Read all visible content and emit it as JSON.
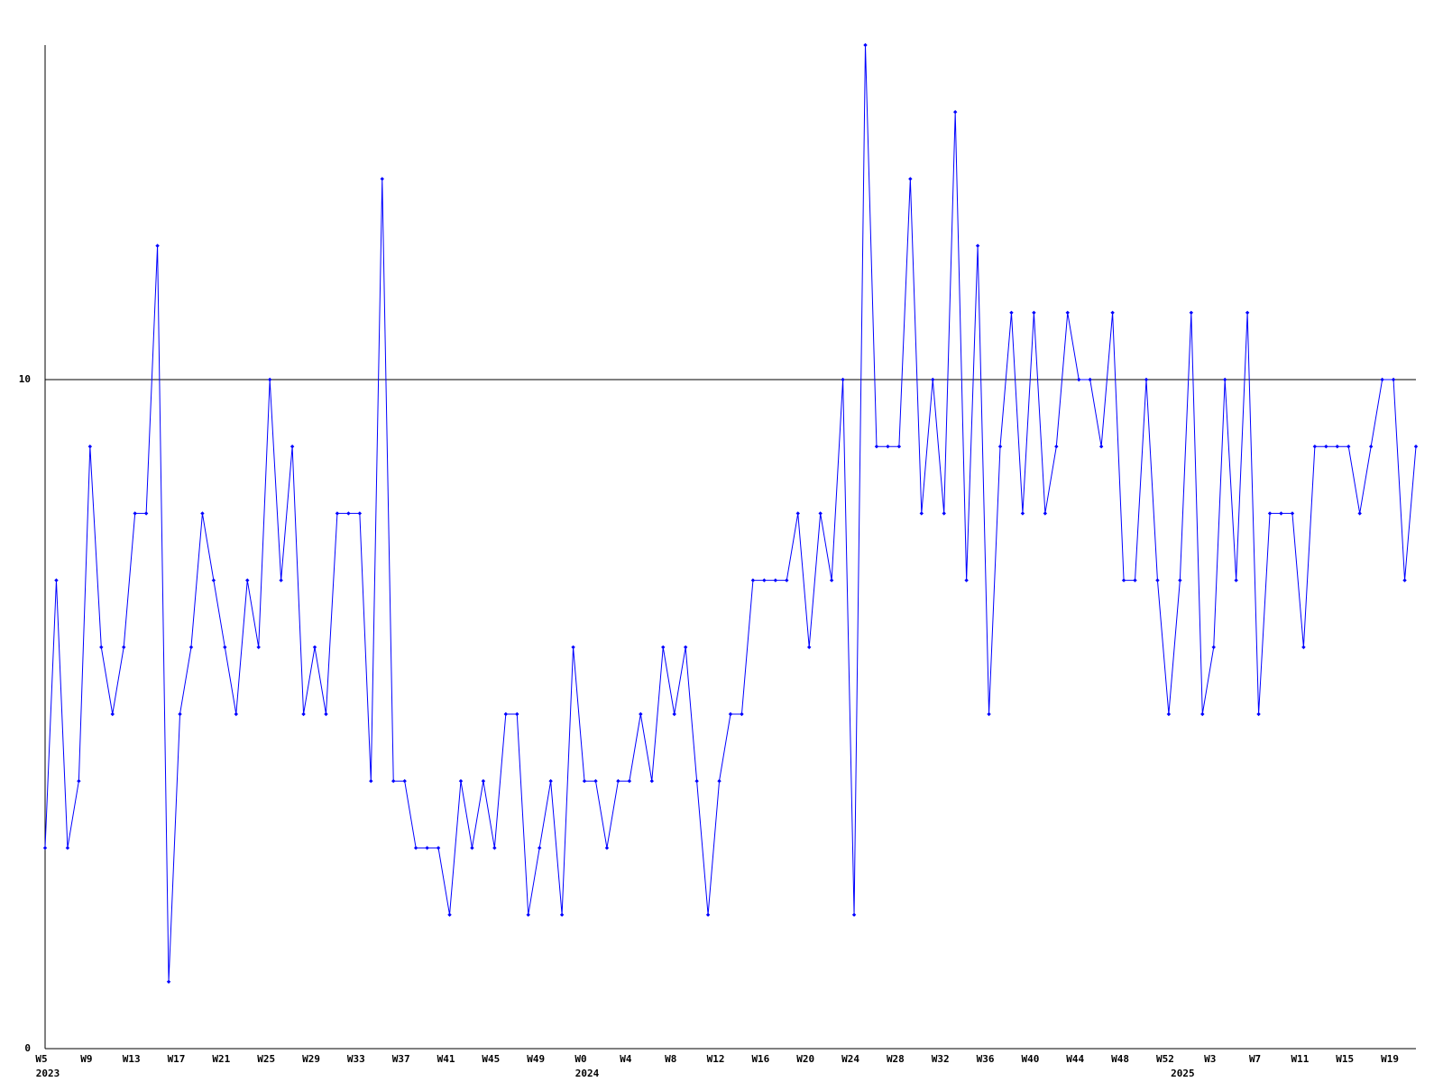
{
  "chart_data": {
    "type": "line",
    "color": "#0000ff",
    "grid": true,
    "ylim": [
      0,
      15
    ],
    "yticks": [
      0,
      10
    ],
    "categories": [
      "W5",
      null,
      null,
      null,
      "W9",
      null,
      null,
      null,
      "W13",
      null,
      null,
      null,
      "W17",
      null,
      null,
      null,
      "W21",
      null,
      null,
      null,
      "W25",
      null,
      null,
      null,
      "W29",
      null,
      null,
      null,
      "W33",
      null,
      null,
      null,
      "W37",
      null,
      null,
      null,
      "W41",
      null,
      null,
      null,
      "W45",
      null,
      null,
      null,
      "W49",
      null,
      null,
      null,
      "W0",
      null,
      null,
      null,
      "W4",
      null,
      null,
      null,
      "W8",
      null,
      null,
      null,
      "W12",
      null,
      null,
      null,
      "W16",
      null,
      null,
      null,
      "W20",
      null,
      null,
      null,
      "W24",
      null,
      null,
      null,
      "W28",
      null,
      null,
      null,
      "W32",
      null,
      null,
      null,
      "W36",
      null,
      null,
      null,
      "W40",
      null,
      null,
      null,
      "W44",
      null,
      null,
      null,
      "W48",
      null,
      null,
      null,
      "W52",
      null,
      null,
      null,
      "W3",
      null,
      null,
      null,
      "W7",
      null,
      null,
      null,
      "W11",
      null,
      null,
      null,
      "W15",
      null,
      null,
      null,
      "W19",
      null,
      null
    ],
    "year_labels": [
      {
        "value": 0,
        "label": "2023"
      },
      {
        "value": 48,
        "label": "2024"
      },
      {
        "value": 101,
        "label": "2025"
      }
    ],
    "values": [
      3,
      7,
      3,
      4,
      9,
      6,
      5,
      6,
      8,
      8,
      12,
      1,
      5,
      6,
      8,
      7,
      6,
      5,
      7,
      6,
      10,
      7,
      9,
      5,
      6,
      5,
      8,
      8,
      8,
      4,
      13,
      4,
      4,
      3,
      3,
      3,
      2,
      4,
      3,
      4,
      3,
      5,
      5,
      2,
      3,
      4,
      2,
      6,
      4,
      4,
      3,
      4,
      4,
      5,
      4,
      6,
      5,
      6,
      4,
      2,
      4,
      5,
      5,
      7,
      7,
      7,
      7,
      8,
      6,
      8,
      7,
      10,
      2,
      15,
      9,
      9,
      9,
      13,
      8,
      10,
      8,
      14,
      7,
      12,
      5,
      9,
      11,
      8,
      11,
      8,
      9,
      11,
      10,
      10,
      9,
      11,
      7,
      7,
      10,
      7,
      5,
      7,
      11,
      5,
      6,
      10,
      7,
      11,
      5,
      8,
      8,
      8,
      6,
      9,
      9,
      9,
      9,
      8,
      9,
      10,
      10,
      7,
      9
    ]
  }
}
